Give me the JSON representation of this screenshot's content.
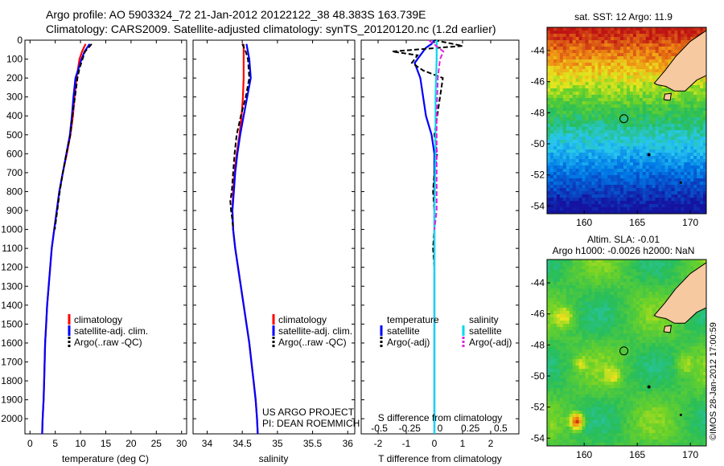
{
  "header": {
    "line1": "Argo profile: AO 5903324_72 21-Jan-2012 20122122_38 48.383S 163.739E",
    "line2": "Climatology: CARS2009. Satellite-adjusted climatology: synTS_20120120.nc (1.2d earlier)"
  },
  "footer": {
    "project": "US ARGO PROJECT",
    "pi": "PI: DEAN ROEMMICH",
    "credit": "©IMOS 28-Jan-2012 17:00:59"
  },
  "colors": {
    "climatology": "#ff0000",
    "satellite": "#0000ff",
    "argo": "#000000",
    "satellite_salinity": "#00d8f0",
    "argo_salinity": "#e020e0",
    "land": "#f7c9a0"
  },
  "chart_data": [
    {
      "id": "temperature",
      "type": "line",
      "xlabel": "temperature (deg C)",
      "ylabel": "",
      "xlim": [
        -1,
        31
      ],
      "ylim": [
        0,
        2080
      ],
      "xticks": [
        "0",
        "5",
        "10",
        "15",
        "20",
        "25",
        "30"
      ],
      "yticks": [
        "0",
        "100",
        "200",
        "300",
        "400",
        "500",
        "600",
        "700",
        "800",
        "900",
        "1000",
        "1100",
        "1200",
        "1300",
        "1400",
        "1500",
        "1600",
        "1700",
        "1800",
        "1900",
        "2000"
      ],
      "legend": [
        "climatology",
        "satellite-adj. clim.",
        "Argo(..raw -QC)"
      ],
      "series": [
        {
          "name": "climatology",
          "depth": [
            20,
            60,
            100,
            150,
            200,
            300,
            400,
            500,
            600,
            700,
            800,
            900,
            1000,
            1100,
            1200,
            1300,
            1400,
            1500,
            1600,
            1700,
            1800,
            1900,
            2000,
            2080
          ],
          "values": [
            11,
            10.3,
            9.8,
            9.5,
            9.2,
            8.8,
            8.5,
            8.0,
            7.3,
            6.5,
            5.8,
            5.3,
            4.8,
            4.3,
            4.0,
            3.7,
            3.4,
            3.2,
            3.0,
            2.9,
            2.8,
            2.7,
            2.5,
            2.4
          ]
        },
        {
          "name": "satellite-adj. clim.",
          "depth": [
            20,
            60,
            100,
            150,
            200,
            300,
            400,
            500,
            600,
            700,
            800,
            900,
            1000,
            1100,
            1200,
            1300,
            1400,
            1500,
            1600,
            1700,
            1800,
            1900,
            2000,
            2080
          ],
          "values": [
            11.8,
            10.8,
            10.2,
            9.6,
            9.0,
            8.6,
            8.3,
            7.9,
            7.2,
            6.5,
            5.8,
            5.3,
            4.8,
            4.3,
            4.0,
            3.7,
            3.4,
            3.2,
            3.0,
            2.9,
            2.8,
            2.7,
            2.5,
            2.4
          ]
        },
        {
          "name": "Argo(..raw -QC)",
          "depth": [
            20,
            40,
            60,
            100,
            150,
            200,
            300,
            400,
            500,
            600,
            700,
            800,
            900,
            1000
          ],
          "values": [
            12.2,
            11.6,
            10.9,
            10.4,
            9.8,
            9.4,
            8.9,
            8.4,
            8.0,
            7.2,
            6.5,
            5.9,
            5.4,
            4.9
          ]
        }
      ]
    },
    {
      "id": "salinity",
      "type": "line",
      "xlabel": "salinity",
      "ylabel": "",
      "xlim": [
        33.8,
        36.1
      ],
      "ylim": [
        0,
        2080
      ],
      "xticks": [
        "34",
        "34.5",
        "35",
        "35.5",
        "36"
      ],
      "legend": [
        "climatology",
        "satellite-adj. clim.",
        "Argo(..raw -QC)"
      ],
      "series": [
        {
          "name": "climatology",
          "depth": [
            20,
            100,
            200,
            300,
            400,
            500,
            600,
            700,
            800,
            900,
            1000,
            1100,
            1200,
            1300,
            1400,
            1500,
            1600,
            1700,
            1800,
            1900,
            2000,
            2080
          ],
          "values": [
            34.52,
            34.52,
            34.52,
            34.51,
            34.49,
            34.46,
            34.42,
            34.39,
            34.37,
            34.36,
            34.37,
            34.4,
            34.44,
            34.48,
            34.52,
            34.56,
            34.6,
            34.63,
            34.66,
            34.69,
            34.71,
            34.72
          ]
        },
        {
          "name": "satellite-adj. clim.",
          "depth": [
            20,
            100,
            200,
            300,
            400,
            500,
            600,
            700,
            800,
            900,
            1000,
            1100,
            1200,
            1300,
            1400,
            1500,
            1600,
            1700,
            1800,
            1900,
            2000,
            2080
          ],
          "values": [
            34.56,
            34.6,
            34.62,
            34.57,
            34.52,
            34.47,
            34.43,
            34.4,
            34.38,
            34.36,
            34.37,
            34.4,
            34.44,
            34.48,
            34.52,
            34.56,
            34.6,
            34.63,
            34.66,
            34.69,
            34.71,
            34.72
          ]
        },
        {
          "name": "Argo(..raw -QC)",
          "depth": [
            20,
            60,
            100,
            200,
            300,
            400,
            500,
            600,
            700,
            800,
            850,
            900,
            950,
            1000
          ],
          "values": [
            34.5,
            34.55,
            34.58,
            34.6,
            34.55,
            34.48,
            34.42,
            34.39,
            34.37,
            34.35,
            34.33,
            34.34,
            34.36,
            34.37
          ]
        }
      ]
    },
    {
      "id": "difference",
      "type": "line",
      "xlabel": "T difference from climatology",
      "xlabel_top": "S difference from climatology",
      "xlim": [
        -2.6,
        3.0
      ],
      "ylim": [
        0,
        2080
      ],
      "xticks": [
        "-2",
        "-1",
        "0",
        "1",
        "2"
      ],
      "sticks": [
        "-0.5",
        "-0.25",
        "0",
        "0.25",
        "0.5"
      ],
      "legend": {
        "temperature_head": "temperature",
        "salinity_head": "salinity",
        "t_items": [
          "satellite",
          "Argo(-adj)"
        ],
        "s_items": [
          "satellite",
          "Argo(-adj)"
        ]
      },
      "series": [
        {
          "name": "T satellite",
          "depth": [
            0,
            20,
            40,
            80,
            120,
            200,
            300,
            400,
            500,
            600,
            700,
            800,
            900,
            1000,
            1200,
            1500,
            2000,
            2080
          ],
          "values": [
            0.0,
            -0.1,
            -0.3,
            -0.5,
            -0.7,
            -0.5,
            -0.4,
            -0.3,
            -0.1,
            0.0,
            0.0,
            0.0,
            0.0,
            0.0,
            0.0,
            0.0,
            0.0,
            0.0
          ]
        },
        {
          "name": "T Argo(-adj)",
          "depth": [
            0,
            30,
            60,
            80,
            120,
            160,
            200,
            300,
            400,
            500,
            600,
            700,
            800,
            900,
            1000,
            1100,
            1200,
            1300,
            1400,
            1500,
            1700,
            2000
          ],
          "values": [
            0.0,
            1.0,
            -1.5,
            -0.6,
            -0.8,
            -0.4,
            0.3,
            0.2,
            0.1,
            0.0,
            0.1,
            0.0,
            -0.05,
            0.0,
            0.0,
            -0.05,
            0.0,
            0.0,
            0.0,
            0.0,
            0.0,
            0.0
          ]
        },
        {
          "name": "S satellite",
          "depth": [
            0,
            100,
            300,
            600,
            900,
            1200,
            1500,
            2080
          ],
          "values": [
            0.02,
            0.02,
            0.01,
            0.01,
            0.0,
            0.0,
            0.0,
            0.0
          ]
        },
        {
          "name": "S Argo(-adj)",
          "depth": [
            0,
            60,
            100,
            200,
            400,
            600,
            800,
            900,
            1000
          ],
          "values": [
            -0.05,
            0.08,
            0.05,
            0.03,
            0.02,
            0.02,
            0.02,
            0.02,
            0.0
          ]
        }
      ]
    },
    {
      "id": "map-sst",
      "type": "heatmap",
      "title": "sat. SST: 12 Argo: 11.9",
      "xticks": [
        "160",
        "165",
        "170"
      ],
      "yticks": [
        "-44",
        "-46",
        "-48",
        "-50",
        "-52",
        "-54"
      ],
      "xlim": [
        156.5,
        171.5
      ],
      "ylim": [
        -54.5,
        -42.5
      ],
      "marker_lon": 163.739,
      "marker_lat": -48.383
    },
    {
      "id": "map-sla",
      "type": "heatmap",
      "title": "Altim. SLA: -0.01",
      "subtitle": "Argo h1000: -0.0026 h2000: NaN",
      "xticks": [
        "160",
        "165",
        "170"
      ],
      "yticks": [
        "-44",
        "-46",
        "-48",
        "-50",
        "-52",
        "-54"
      ],
      "xlim": [
        156.5,
        171.5
      ],
      "ylim": [
        -54.5,
        -42.5
      ],
      "marker_lon": 163.739,
      "marker_lat": -48.383
    }
  ]
}
